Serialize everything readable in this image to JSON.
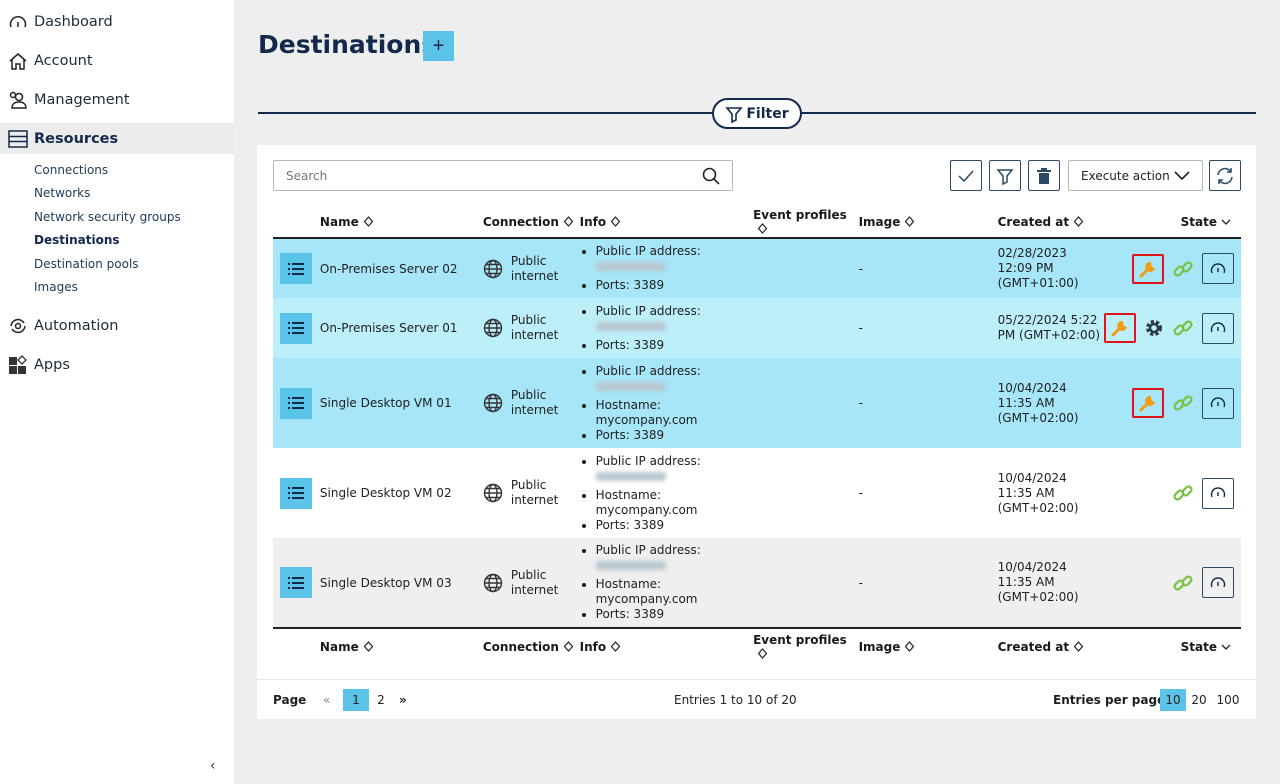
{
  "sidebar": {
    "items": [
      {
        "label": "Dashboard",
        "icon": "gauge-icon"
      },
      {
        "label": "Account",
        "icon": "home-icon"
      },
      {
        "label": "Management",
        "icon": "users-icon"
      },
      {
        "label": "Resources",
        "icon": "server-icon",
        "active": true
      },
      {
        "label": "Automation",
        "icon": "automation-icon"
      },
      {
        "label": "Apps",
        "icon": "apps-icon"
      }
    ],
    "sub_items": [
      {
        "label": "Connections"
      },
      {
        "label": "Networks"
      },
      {
        "label": "Network security groups"
      },
      {
        "label": "Destinations",
        "active": true
      },
      {
        "label": "Destination pools"
      },
      {
        "label": "Images"
      }
    ],
    "collapse": "‹"
  },
  "page": {
    "title": "Destinations",
    "add_label": "+",
    "filter_label": "Filter"
  },
  "toolbar": {
    "search_placeholder": "Search",
    "execute_action": "Execute action"
  },
  "table": {
    "columns": [
      "Name",
      "Connection",
      "Info",
      "Event profiles",
      "Image",
      "Created at",
      "State"
    ],
    "rows": [
      {
        "name": "On-Premises Server 02",
        "connection": [
          "Public",
          "internet"
        ],
        "info": [
          "Public IP address:",
          "Ports: 3389"
        ],
        "event_profiles": "",
        "image": "-",
        "created": [
          "02/28/2023",
          "12:09 PM",
          "(GMT+01:00)"
        ],
        "wrench": true,
        "gear": false,
        "bg": "#a6e6f8"
      },
      {
        "name": "On-Premises Server 01",
        "connection": [
          "Public",
          "internet"
        ],
        "info": [
          "Public IP address:",
          "Ports: 3389"
        ],
        "event_profiles": "",
        "image": "-",
        "created": [
          "05/22/2024 5:22",
          "PM (GMT+02:00)",
          ""
        ],
        "wrench": true,
        "gear": true,
        "bg": "#bdeffb"
      },
      {
        "name": "Single Desktop VM 01",
        "connection": [
          "Public",
          "internet"
        ],
        "info": [
          "Public IP address:",
          "Hostname:",
          "mycompany.com",
          "Ports: 3389"
        ],
        "event_profiles": "",
        "image": "-",
        "created": [
          "10/04/2024",
          "11:35 AM",
          "(GMT+02:00)"
        ],
        "wrench": true,
        "gear": false,
        "bg": "#a6e6f8"
      },
      {
        "name": "Single Desktop VM 02",
        "connection": [
          "Public",
          "internet"
        ],
        "info": [
          "Public IP address:",
          "Hostname:",
          "mycompany.com",
          "Ports: 3389"
        ],
        "event_profiles": "",
        "image": "-",
        "created": [
          "10/04/2024",
          "11:35 AM",
          "(GMT+02:00)"
        ],
        "wrench": false,
        "gear": false,
        "bg": "#ffffff"
      },
      {
        "name": "Single Desktop VM 03",
        "connection": [
          "Public",
          "internet"
        ],
        "info": [
          "Public IP address:",
          "Hostname:",
          "mycompany.com",
          "Ports: 3389"
        ],
        "event_profiles": "",
        "image": "-",
        "created": [
          "10/04/2024",
          "11:35 AM",
          "(GMT+02:00)"
        ],
        "wrench": false,
        "gear": false,
        "bg": "#efefef"
      }
    ]
  },
  "pager": {
    "page_label": "Page",
    "pages": [
      "1",
      "2"
    ],
    "current": "1",
    "entries": "Entries 1 to 10 of 20",
    "per_page_label": "Entries per page",
    "per_page_options": [
      "10",
      "20",
      "100"
    ],
    "per_page_selected": "10"
  },
  "colors": {
    "accent": "#5bc3e8",
    "navy": "#13294b",
    "wrench": "#f39c12",
    "highlight": "#e0141a",
    "link": "#7ac143"
  }
}
